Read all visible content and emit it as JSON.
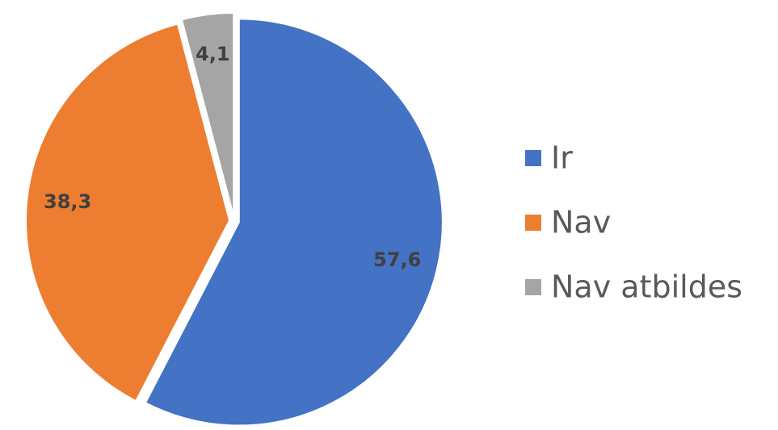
{
  "chart_data": {
    "type": "pie",
    "categories": [
      "Ir",
      "Nav",
      "Nav atbildes"
    ],
    "values": [
      57.6,
      38.3,
      4.1
    ],
    "value_labels": [
      "57,6",
      "38,3",
      "4,1"
    ],
    "colors": [
      "#4472c4",
      "#ed7d31",
      "#a5a5a5"
    ],
    "legend": "right"
  }
}
